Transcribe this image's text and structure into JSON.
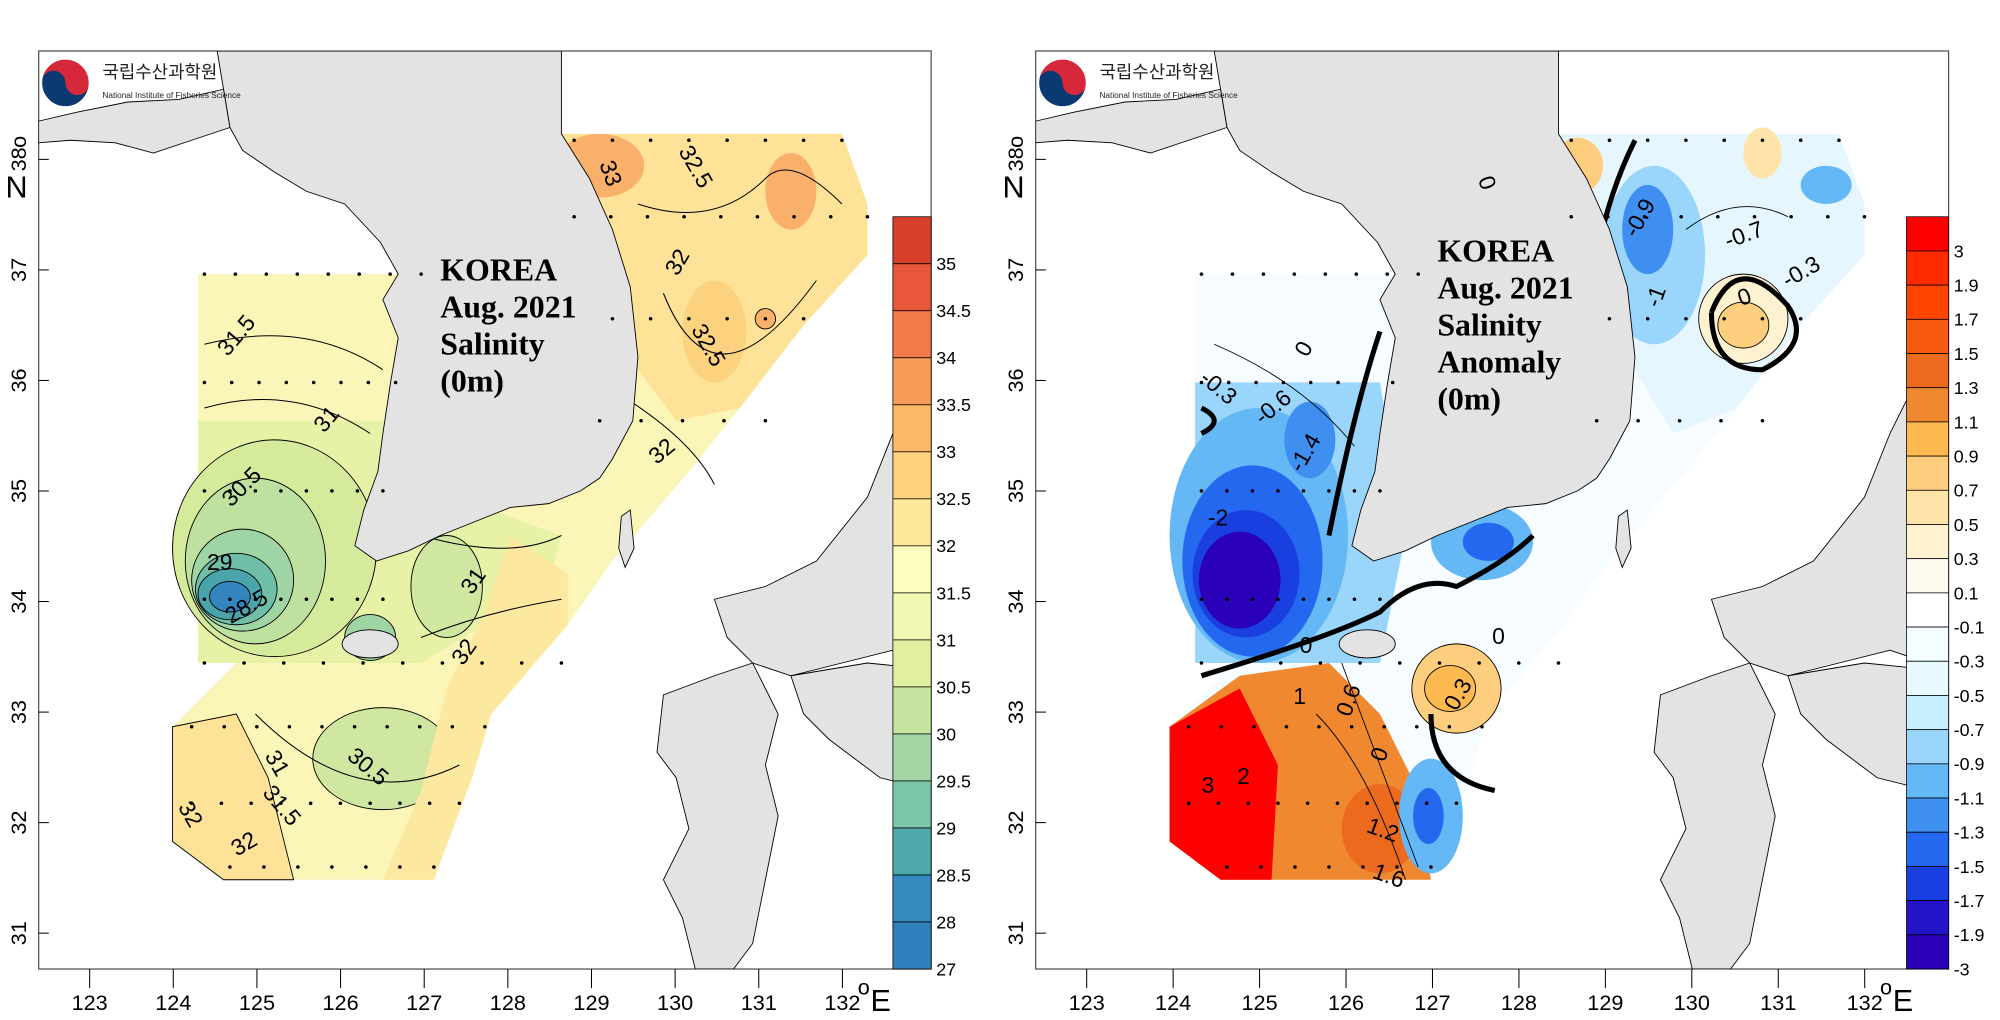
{
  "logo": {
    "korean": "국립수산과학원",
    "english": "National Institute of Fisheries Science",
    "colors": {
      "red": "#d6283a",
      "blue": "#0b3a72"
    }
  },
  "axes": {
    "lon_ticks": [
      "123",
      "124",
      "125",
      "126",
      "127",
      "128",
      "129",
      "130",
      "131",
      "132"
    ],
    "lat_ticks": [
      "38",
      "37",
      "36",
      "35",
      "34",
      "33",
      "32",
      "31"
    ],
    "lon_unit": "E",
    "lat_unit": "N",
    "degree": "o"
  },
  "panels": [
    {
      "title_lines": [
        "KOREA",
        "Aug. 2021",
        "Salinity",
        "(0m)"
      ],
      "colorbar": {
        "labels": [
          "35",
          "34.5",
          "34",
          "33.5",
          "33",
          "32.5",
          "32",
          "31.5",
          "31",
          "30.5",
          "30",
          "29.5",
          "29",
          "28.5",
          "28",
          "27"
        ],
        "colors": [
          "#d73f2a",
          "#e8573a",
          "#f47a4a",
          "#f99c59",
          "#fdb769",
          "#fdd27f",
          "#fee89c",
          "#ffffc2",
          "#f2f8b2",
          "#e1f0a0",
          "#c7e5a1",
          "#a2d6a4",
          "#79c6a8",
          "#4fa9ab",
          "#3489bf",
          "#2f80bd"
        ]
      },
      "contour_labels": [
        "33",
        "32.5",
        "32",
        "32.5",
        "32",
        "31.5",
        "31",
        "30.5",
        "29",
        "28.5",
        "31",
        "32",
        "30.5",
        "31",
        "31.5",
        "32",
        "32"
      ]
    },
    {
      "title_lines": [
        "KOREA",
        "Aug. 2021",
        "Salinity",
        "Anomaly",
        "(0m)"
      ],
      "colorbar": {
        "labels": [
          "3",
          "1.9",
          "1.7",
          "1.5",
          "1.3",
          "1.1",
          "0.9",
          "0.7",
          "0.5",
          "0.3",
          "0.1",
          "-0.1",
          "-0.3",
          "-0.5",
          "-0.7",
          "-0.9",
          "-1.1",
          "-1.3",
          "-1.5",
          "-1.7",
          "-1.9",
          "-3"
        ],
        "colors": [
          "#ff0000",
          "#ff2a00",
          "#ff4400",
          "#f75a10",
          "#ec6a1e",
          "#f08830",
          "#fbb950",
          "#fdce7e",
          "#fee4a8",
          "#fff2d0",
          "#fffaf0",
          "#ffffff",
          "#f4fdff",
          "#e6faff",
          "#c8efff",
          "#9ad6fb",
          "#64b8f5",
          "#3e8ff0",
          "#2468f0",
          "#1a3fe0",
          "#2414c8",
          "#2a00b8"
        ]
      },
      "contour_labels": [
        "0",
        "-0.9",
        "-0.7",
        "-1",
        "0",
        "-0.3",
        "0",
        "-0.3",
        "-0.6",
        "-1.4",
        "-2",
        "0",
        "0",
        "1",
        "0.6",
        "2",
        "3",
        "0.3",
        "0",
        "1.2",
        "1.6"
      ]
    }
  ]
}
